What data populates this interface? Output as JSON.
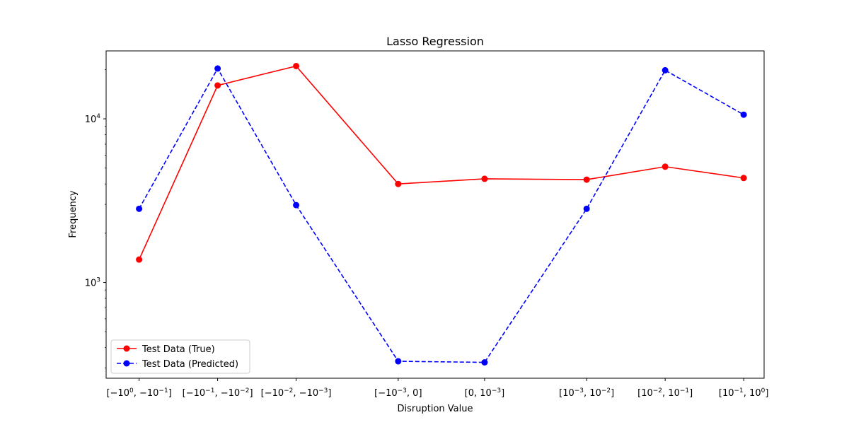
{
  "chart_data": {
    "type": "line",
    "title": "Lasso Regression",
    "xlabel": "Disruption Value",
    "ylabel": "Frequency",
    "yscale": "log",
    "ylim": [
      260,
      26000
    ],
    "grid": false,
    "legend_position": "lower-left",
    "categories": [
      {
        "base": "[−10",
        "sup1": "0",
        "mid": ", −10",
        "sup2": "−1",
        "end": "]",
        "x": -7
      },
      {
        "base": "[−10",
        "sup1": "−1",
        "mid": ", −10",
        "sup2": "−2",
        "end": "]",
        "x": -6
      },
      {
        "base": "[−10",
        "sup1": "−2",
        "mid": ", −10",
        "sup2": "−3",
        "end": "]",
        "x": -5
      },
      {
        "base": "[−10",
        "sup1": "−3",
        "mid": ", 0",
        "sup2": "",
        "end": "]",
        "x": -3.7
      },
      {
        "base": "[0, 10",
        "sup1": "−3",
        "mid": "",
        "sup2": "",
        "end": "]",
        "x": -2.6
      },
      {
        "base": "[10",
        "sup1": "−3",
        "mid": ", 10",
        "sup2": "−2",
        "end": "]",
        "x": -1.3
      },
      {
        "base": "[10",
        "sup1": "−2",
        "mid": ", 10",
        "sup2": "−1",
        "end": "]",
        "x": -0.3
      },
      {
        "base": "[10",
        "sup1": "−1",
        "mid": ", 10",
        "sup2": "0",
        "end": "]",
        "x": 0.7
      }
    ],
    "yticks": [
      {
        "value": 1000,
        "base": "10",
        "exp": "3"
      },
      {
        "value": 10000,
        "base": "10",
        "exp": "4"
      }
    ],
    "series": [
      {
        "name": "Test Data (True)",
        "color": "#ff0000",
        "linestyle": "solid",
        "marker": "circle",
        "values": [
          1380,
          16000,
          21000,
          4000,
          4300,
          4250,
          5100,
          4350
        ]
      },
      {
        "name": "Test Data (Predicted)",
        "color": "#0000ff",
        "linestyle": "dashed",
        "marker": "circle",
        "values": [
          2820,
          20300,
          2970,
          330,
          325,
          2820,
          19800,
          10600
        ]
      }
    ]
  }
}
